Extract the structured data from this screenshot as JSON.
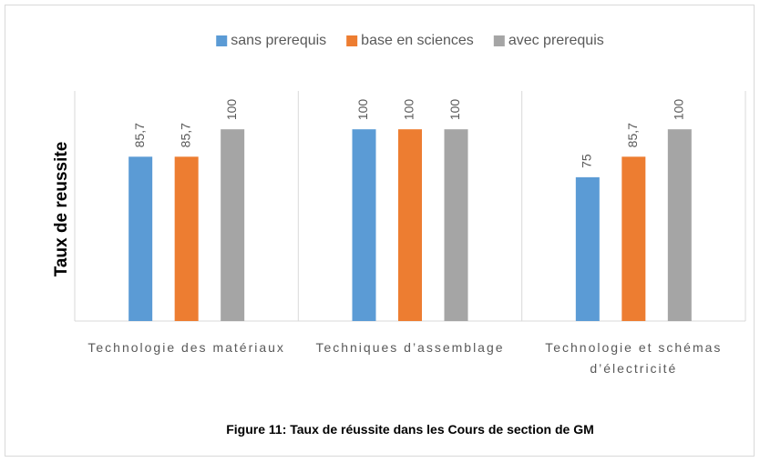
{
  "chart_data": {
    "type": "bar",
    "ylabel": "Taux de reussite",
    "caption": "Figure 11: Taux de réussite dans les Cours de section de GM",
    "categories": [
      "Technologie des matériaux",
      "Techniques d’assemblage",
      "Technologie et schémas d’électricité"
    ],
    "series": [
      {
        "name": "sans prerequis",
        "color": "#5b9bd5",
        "values": [
          85.7,
          100,
          75
        ],
        "value_labels": [
          "85,7",
          "100",
          "75"
        ]
      },
      {
        "name": "base en sciences",
        "color": "#ed7d31",
        "values": [
          85.7,
          100,
          85.7
        ],
        "value_labels": [
          "85,7",
          "100",
          "85,7"
        ]
      },
      {
        "name": "avec prerequis",
        "color": "#a5a5a5",
        "values": [
          100,
          100,
          100
        ],
        "value_labels": [
          "100",
          "100",
          "100"
        ]
      }
    ],
    "ylim": [
      0,
      120
    ],
    "legend": "top"
  }
}
